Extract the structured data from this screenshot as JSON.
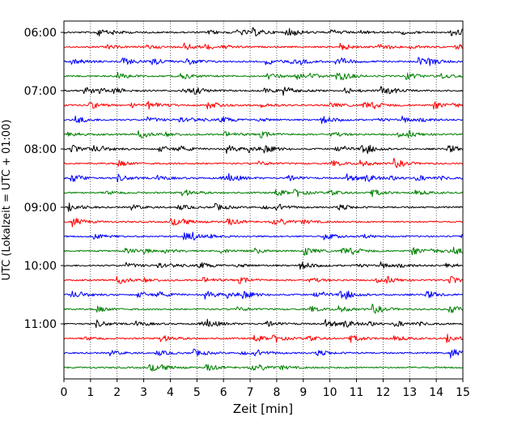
{
  "chart_data": {
    "type": "line",
    "title": "",
    "xlabel": "Zeit  [min]",
    "ylabel": "UTC (Lokalzeit = UTC + 01:00)",
    "xlim": [
      0,
      15
    ],
    "xticks": [
      0,
      1,
      2,
      3,
      4,
      5,
      6,
      7,
      8,
      9,
      10,
      11,
      12,
      13,
      14,
      15
    ],
    "ytick_labels": [
      "06:00",
      "07:00",
      "08:00",
      "09:00",
      "10:00",
      "11:00"
    ],
    "trace_interval_minutes": 15,
    "trace_count": 24,
    "trace_colors": [
      "#000000",
      "#ff0000",
      "#0000ff",
      "#008000"
    ],
    "grid": "vertical dotted lines at each minute"
  }
}
